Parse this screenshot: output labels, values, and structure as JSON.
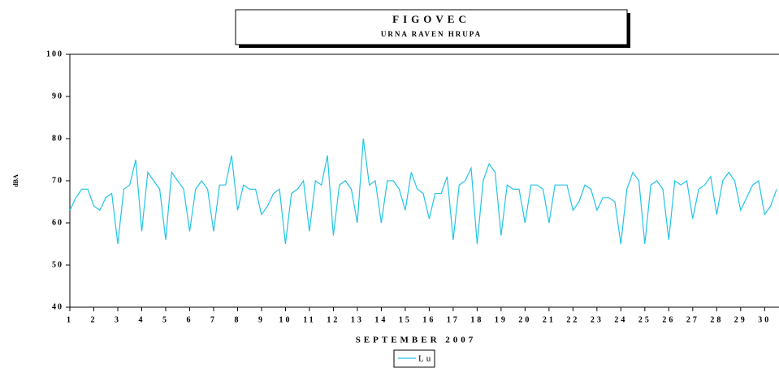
{
  "chart_data": {
    "type": "line",
    "title": "FIGOVEC",
    "subtitle": "URNA RAVEN HRUPA",
    "xlabel": "SEPTEMBER 2007",
    "ylabel": "dBA",
    "xlim": [
      1,
      30.6
    ],
    "xticks": [
      1,
      2,
      3,
      4,
      5,
      6,
      7,
      8,
      9,
      10,
      11,
      12,
      13,
      14,
      15,
      16,
      17,
      18,
      19,
      20,
      21,
      22,
      23,
      24,
      25,
      26,
      27,
      28,
      29,
      30
    ],
    "ylim": [
      40,
      100
    ],
    "yticks": [
      40,
      50,
      60,
      70,
      80,
      90,
      100
    ],
    "grid": false,
    "legend": "bottom",
    "x": [
      1,
      1.25,
      1.5,
      1.75,
      2,
      2.25,
      2.5,
      2.75,
      3,
      3.25,
      3.5,
      3.75,
      4,
      4.25,
      4.5,
      4.75,
      5,
      5.25,
      5.5,
      5.75,
      6,
      6.25,
      6.5,
      6.75,
      7,
      7.25,
      7.5,
      7.75,
      8,
      8.25,
      8.5,
      8.75,
      9,
      9.25,
      9.5,
      9.75,
      10,
      10.25,
      10.5,
      10.75,
      11,
      11.25,
      11.5,
      11.75,
      12,
      12.25,
      12.5,
      12.75,
      13,
      13.25,
      13.5,
      13.75,
      14,
      14.25,
      14.5,
      14.75,
      15,
      15.25,
      15.5,
      15.75,
      16,
      16.25,
      16.5,
      16.75,
      17,
      17.25,
      17.5,
      17.75,
      18,
      18.25,
      18.5,
      18.75,
      19,
      19.25,
      19.5,
      19.75,
      20,
      20.25,
      20.5,
      20.75,
      21,
      21.25,
      21.5,
      21.75,
      22,
      22.25,
      22.5,
      22.75,
      23,
      23.25,
      23.5,
      23.75,
      24,
      24.25,
      24.5,
      24.75,
      25,
      25.25,
      25.5,
      25.75,
      26,
      26.25,
      26.5,
      26.75,
      27,
      27.25,
      27.5,
      27.75,
      28,
      28.25,
      28.5,
      28.75,
      29,
      29.25,
      29.5,
      29.75,
      30,
      30.25,
      30.5
    ],
    "series": [
      {
        "name": "Lu",
        "color": "#22c4e6",
        "values": [
          63,
          66,
          68,
          68,
          64,
          63,
          66,
          67,
          55,
          68,
          69,
          75,
          58,
          72,
          70,
          68,
          56,
          72,
          70,
          68,
          58,
          68,
          70,
          68,
          58,
          69,
          69,
          76,
          63,
          69,
          68,
          68,
          62,
          64,
          67,
          68,
          55,
          67,
          68,
          70,
          58,
          70,
          69,
          76,
          57,
          69,
          70,
          68,
          60,
          80,
          69,
          70,
          60,
          70,
          70,
          68,
          63,
          72,
          68,
          67,
          61,
          67,
          67,
          71,
          56,
          69,
          70,
          73,
          55,
          70,
          74,
          72,
          57,
          69,
          68,
          68,
          60,
          69,
          69,
          68,
          60,
          69,
          69,
          69,
          63,
          65,
          69,
          68,
          63,
          66,
          66,
          65,
          55,
          68,
          72,
          70,
          55,
          69,
          70,
          68,
          56,
          70,
          69,
          70,
          61,
          68,
          69,
          71,
          62,
          70,
          72,
          70,
          63,
          66,
          69,
          70,
          62,
          64,
          68
        ]
      }
    ]
  }
}
